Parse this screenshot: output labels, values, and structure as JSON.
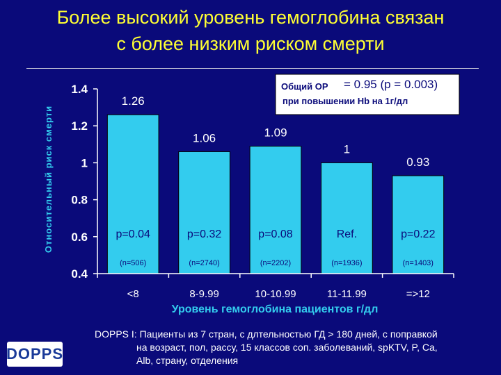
{
  "title_line1": "Более высокий уровень гемоглобина связан",
  "title_line2": "с более низким риском смерти",
  "legend_box": {
    "line1_label": "Общий ОР",
    "line1_value": "= 0.95 (p = 0.003)",
    "line2": "при повышении Hb на 1г/дл"
  },
  "footnote": {
    "line1": "DOPPS I:  Пациенты из 7 стран, с длтельностью ГД > 180 дней, с поправкой",
    "line2": "на возраст, пол, рассу, 15 классов соп. заболеваний, spKTV, P, Ca,",
    "line3": "Alb, страну, отделения"
  },
  "logo_text": "DOPPS",
  "colors": {
    "background": "#0a0a7a",
    "title": "#ffff33",
    "bar": "#33ccee",
    "axis": "#ffffff",
    "xlabel": "#33ccee",
    "ylabel": "#33ccee"
  },
  "chart_data": {
    "type": "bar",
    "xlabel": "Уровень гемоглобина пациентов г/дл",
    "ylabel": "Относительный риск смерти",
    "ylim": [
      0.4,
      1.4
    ],
    "yticks": [
      "0.4",
      "0.6",
      "0.8",
      "1",
      "1.2",
      "1.4"
    ],
    "categories": [
      "<8",
      "8-9.99",
      "10-10.99",
      "11-11.99",
      "=>12"
    ],
    "values": [
      1.26,
      1.06,
      1.09,
      1.0,
      0.93
    ],
    "value_labels": [
      "1.26",
      "1.06",
      "1.09",
      "1",
      "0.93"
    ],
    "p_labels": [
      "p=0.04",
      "p=0.32",
      "p=0.08",
      "Ref.",
      "p=0.22"
    ],
    "n_labels": [
      "(n=506)",
      "(n=2740)",
      "(n=2202)",
      "(n=1936)",
      "(n=1403)"
    ],
    "grid": false
  }
}
